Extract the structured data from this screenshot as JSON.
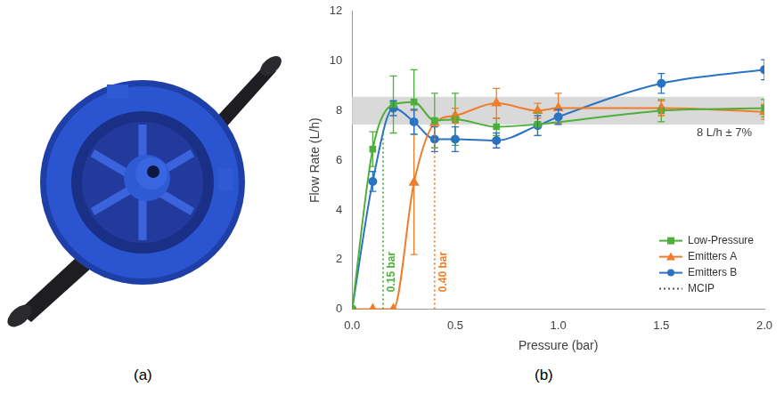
{
  "panel_labels": [
    "(a)",
    "(b)"
  ],
  "chart_data": {
    "type": "line",
    "xlabel": "Pressure (bar)",
    "ylabel": "Flow Rate (L/h)",
    "x": [
      0,
      0.1,
      0.2,
      0.3,
      0.4,
      0.5,
      0.7,
      0.9,
      1.0,
      1.5,
      2.0
    ],
    "xlim": [
      0,
      2
    ],
    "xticks": [
      {
        "value": 0,
        "label": "0.0"
      },
      {
        "value": 0.5,
        "label": "0.5"
      },
      {
        "value": 1,
        "label": "1.0"
      },
      {
        "value": 1.5,
        "label": "1.5"
      },
      {
        "value": 2,
        "label": "2.0"
      }
    ],
    "ylim": [
      0,
      12
    ],
    "yticks": [
      0,
      2,
      4,
      6,
      8,
      10,
      12
    ],
    "grid": false,
    "legend": "lower right",
    "series": [
      {
        "name": "Low-Pressure",
        "color": "#4daf3c",
        "marker": "square",
        "line_style": "solid",
        "values": [
          0,
          6.45,
          8.25,
          8.35,
          7.6,
          7.65,
          7.35,
          7.45,
          null,
          8.0,
          8.1
        ],
        "errors": [
          null,
          0.7,
          1.15,
          1.3,
          1.1,
          1.05,
          0.35,
          0.45,
          null,
          0.45,
          0.35
        ]
      },
      {
        "name": "Emitters A",
        "color": "#f07d2a",
        "marker": "triangle",
        "line_style": "solid",
        "values": [
          0,
          0,
          0,
          5.1,
          7.5,
          7.8,
          8.3,
          8.0,
          8.1,
          8.1,
          7.95
        ],
        "errors": [
          null,
          null,
          null,
          2.9,
          null,
          0.3,
          0.6,
          0.3,
          0.6,
          0.3,
          0.3
        ]
      },
      {
        "name": "Emitters B",
        "color": "#2a72c2",
        "marker": "circle",
        "line_style": "solid",
        "values": [
          0,
          5.15,
          8.1,
          7.55,
          6.85,
          6.85,
          6.8,
          7.4,
          7.75,
          9.1,
          9.65
        ],
        "errors": [
          null,
          0.4,
          0.3,
          0.5,
          0.5,
          0.5,
          0.3,
          0.4,
          0.3,
          0.4,
          0.4
        ]
      }
    ],
    "mcip": {
      "name": "MCIP",
      "color": "#555555",
      "line_style": "dotted",
      "lines": [
        {
          "x": 0.15,
          "ymax": 7.2,
          "label": "0.15 bar",
          "color": "#4daf3c"
        },
        {
          "x": 0.4,
          "ymax": 7.5,
          "label": "0.40 bar",
          "color": "#f07d2a"
        }
      ]
    },
    "band": {
      "ymin": 7.44,
      "ymax": 8.56,
      "label": "8 L/h ± 7%",
      "color": "#d9d9d9"
    }
  }
}
